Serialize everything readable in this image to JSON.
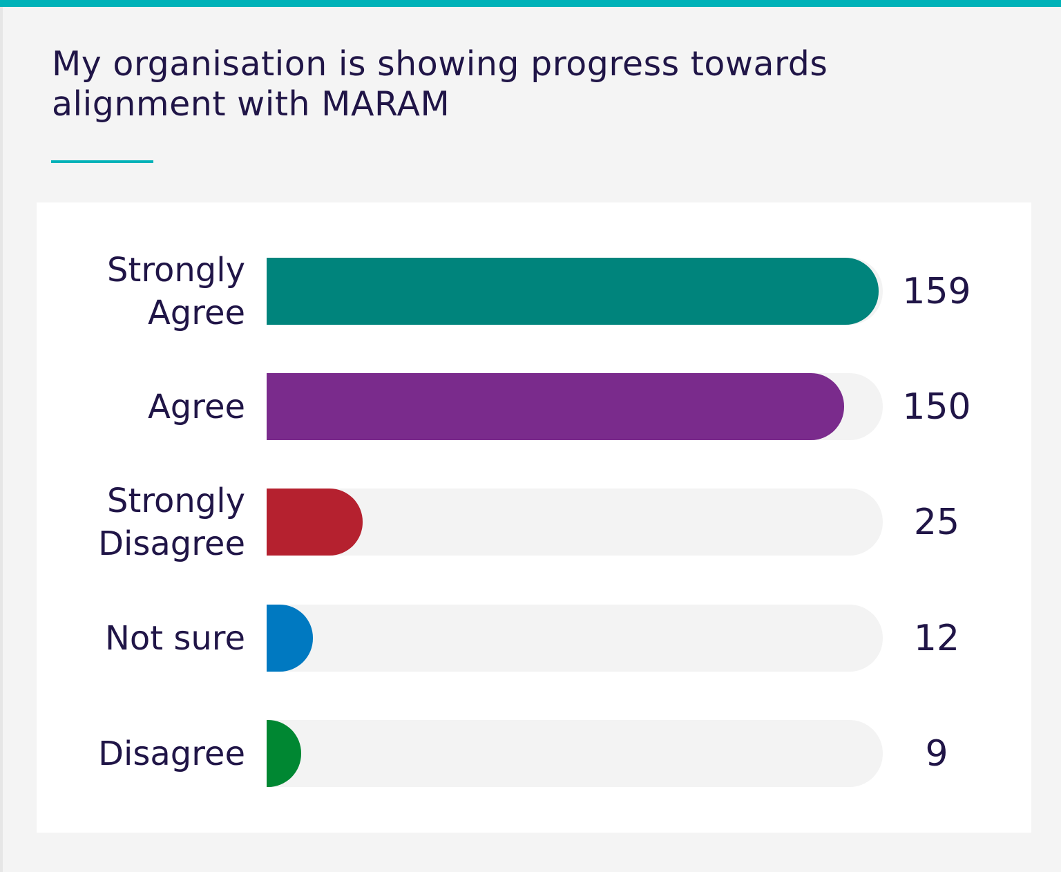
{
  "chart_data": {
    "type": "bar",
    "orientation": "horizontal",
    "title": "My organisation is showing progress towards alignment with MARAM",
    "categories": [
      "Strongly Agree",
      "Agree",
      "Strongly Disagree",
      "Not sure",
      "Disagree"
    ],
    "values": [
      159,
      150,
      25,
      12,
      9
    ],
    "colors": [
      "#00847c",
      "#7a2b8c",
      "#b5212f",
      "#0079c1",
      "#008732"
    ],
    "xlim": [
      0,
      160
    ],
    "grid": false,
    "data_labels": true
  },
  "colors": {
    "accent": "#00b2b8",
    "text": "#201547",
    "track": "#f3f3f3"
  }
}
